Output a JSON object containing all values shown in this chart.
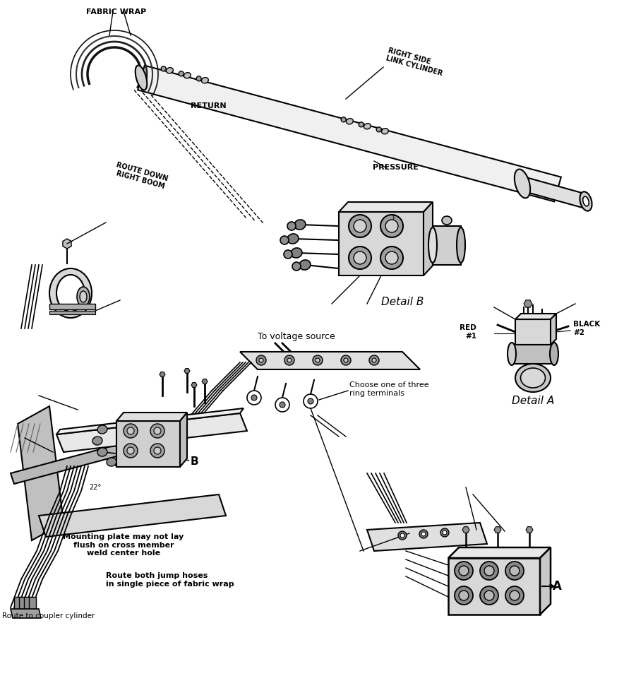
{
  "bg_color": "#ffffff",
  "lc": "#000000",
  "fig_width": 9.01,
  "fig_height": 9.57,
  "labels": {
    "fabric_wrap": "FABRIC WRAP",
    "right_side_link_cylinder": "RIGHT SIDE\nLINK CYLINDER",
    "return_label": "RETURN",
    "route_down": "ROUTE DOWN\nRIGHT BOOM",
    "pressure": "PRESSURE",
    "detail_b": "Detail B",
    "detail_a": "Detail A",
    "red1": "RED\n#1",
    "black2": "BLACK\n#2",
    "to_voltage": "To voltage source",
    "choose_ring": "Choose one of three\nring terminals",
    "mounting_plate": "Mounting plate may not lay\nflush on cross member\nweld center hole",
    "route_both": "Route both jump hoses\nin single piece of fabric wrap",
    "route_coupler": "Route to coupler cylinder",
    "b_label": "B",
    "a_label": "A",
    "degree_22": "22°"
  }
}
